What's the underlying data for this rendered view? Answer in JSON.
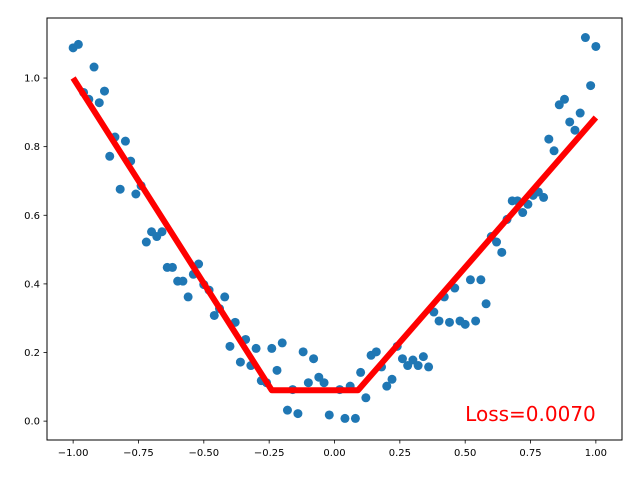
{
  "chart_data": {
    "type": "scatter",
    "title": "",
    "xlabel": "",
    "ylabel": "",
    "xlim": [
      -1.1,
      1.1
    ],
    "ylim": [
      -0.055,
      1.175
    ],
    "grid": false,
    "x_ticks": [
      -1.0,
      -0.75,
      -0.5,
      -0.25,
      0.0,
      0.25,
      0.5,
      0.75,
      1.0
    ],
    "x_tick_labels": [
      "−1.00",
      "−0.75",
      "−0.50",
      "−0.25",
      "0.00",
      "0.25",
      "0.50",
      "0.75",
      "1.00"
    ],
    "y_ticks": [
      0.0,
      0.2,
      0.4,
      0.6,
      0.8,
      1.0
    ],
    "y_tick_labels": [
      "0.0",
      "0.2",
      "0.4",
      "0.6",
      "0.8",
      "1.0"
    ],
    "scatter": {
      "color": "#1f77b4",
      "points": [
        [
          -1.0,
          1.088
        ],
        [
          -0.98,
          1.098
        ],
        [
          -0.96,
          0.958
        ],
        [
          -0.94,
          0.938
        ],
        [
          -0.92,
          1.032
        ],
        [
          -0.9,
          0.928
        ],
        [
          -0.88,
          0.962
        ],
        [
          -0.86,
          0.772
        ],
        [
          -0.84,
          0.828
        ],
        [
          -0.82,
          0.676
        ],
        [
          -0.8,
          0.816
        ],
        [
          -0.78,
          0.758
        ],
        [
          -0.76,
          0.662
        ],
        [
          -0.74,
          0.686
        ],
        [
          -0.72,
          0.522
        ],
        [
          -0.7,
          0.552
        ],
        [
          -0.68,
          0.538
        ],
        [
          -0.66,
          0.552
        ],
        [
          -0.64,
          0.448
        ],
        [
          -0.62,
          0.448
        ],
        [
          -0.6,
          0.408
        ],
        [
          -0.58,
          0.408
        ],
        [
          -0.56,
          0.362
        ],
        [
          -0.54,
          0.428
        ],
        [
          -0.52,
          0.458
        ],
        [
          -0.5,
          0.398
        ],
        [
          -0.48,
          0.382
        ],
        [
          -0.46,
          0.308
        ],
        [
          -0.44,
          0.328
        ],
        [
          -0.42,
          0.362
        ],
        [
          -0.4,
          0.218
        ],
        [
          -0.38,
          0.288
        ],
        [
          -0.36,
          0.172
        ],
        [
          -0.34,
          0.238
        ],
        [
          -0.32,
          0.162
        ],
        [
          -0.3,
          0.212
        ],
        [
          -0.28,
          0.118
        ],
        [
          -0.26,
          0.112
        ],
        [
          -0.24,
          0.212
        ],
        [
          -0.22,
          0.148
        ],
        [
          -0.2,
          0.228
        ],
        [
          -0.18,
          0.032
        ],
        [
          -0.16,
          0.092
        ],
        [
          -0.14,
          0.022
        ],
        [
          -0.12,
          0.202
        ],
        [
          -0.1,
          0.112
        ],
        [
          -0.08,
          0.182
        ],
        [
          -0.06,
          0.128
        ],
        [
          -0.04,
          0.112
        ],
        [
          -0.02,
          0.018
        ],
        [
          0.02,
          0.092
        ],
        [
          0.04,
          0.008
        ],
        [
          0.06,
          0.102
        ],
        [
          0.08,
          0.008
        ],
        [
          0.1,
          0.142
        ],
        [
          0.12,
          0.068
        ],
        [
          0.14,
          0.192
        ],
        [
          0.16,
          0.202
        ],
        [
          0.18,
          0.158
        ],
        [
          0.2,
          0.102
        ],
        [
          0.22,
          0.122
        ],
        [
          0.24,
          0.218
        ],
        [
          0.26,
          0.182
        ],
        [
          0.28,
          0.162
        ],
        [
          0.3,
          0.178
        ],
        [
          0.32,
          0.162
        ],
        [
          0.34,
          0.188
        ],
        [
          0.36,
          0.158
        ],
        [
          0.38,
          0.318
        ],
        [
          0.4,
          0.292
        ],
        [
          0.42,
          0.362
        ],
        [
          0.44,
          0.288
        ],
        [
          0.46,
          0.388
        ],
        [
          0.48,
          0.292
        ],
        [
          0.5,
          0.282
        ],
        [
          0.52,
          0.412
        ],
        [
          0.54,
          0.292
        ],
        [
          0.56,
          0.412
        ],
        [
          0.58,
          0.342
        ],
        [
          0.6,
          0.538
        ],
        [
          0.62,
          0.522
        ],
        [
          0.64,
          0.492
        ],
        [
          0.66,
          0.588
        ],
        [
          0.68,
          0.642
        ],
        [
          0.7,
          0.642
        ],
        [
          0.72,
          0.608
        ],
        [
          0.74,
          0.632
        ],
        [
          0.76,
          0.658
        ],
        [
          0.78,
          0.668
        ],
        [
          0.8,
          0.652
        ],
        [
          0.82,
          0.822
        ],
        [
          0.84,
          0.788
        ],
        [
          0.86,
          0.922
        ],
        [
          0.88,
          0.938
        ],
        [
          0.9,
          0.872
        ],
        [
          0.92,
          0.848
        ],
        [
          0.94,
          0.898
        ],
        [
          0.96,
          1.118
        ],
        [
          0.98,
          0.978
        ],
        [
          1.0,
          1.092
        ]
      ]
    },
    "line": {
      "color": "#ff0000",
      "points": [
        [
          -1.0,
          1.0
        ],
        [
          -0.24,
          0.09
        ],
        [
          0.09,
          0.09
        ],
        [
          1.0,
          0.885
        ]
      ]
    },
    "annotation": {
      "text": "Loss=0.0070",
      "x": 0.5,
      "y": 0.0,
      "color": "#ff0000"
    }
  }
}
